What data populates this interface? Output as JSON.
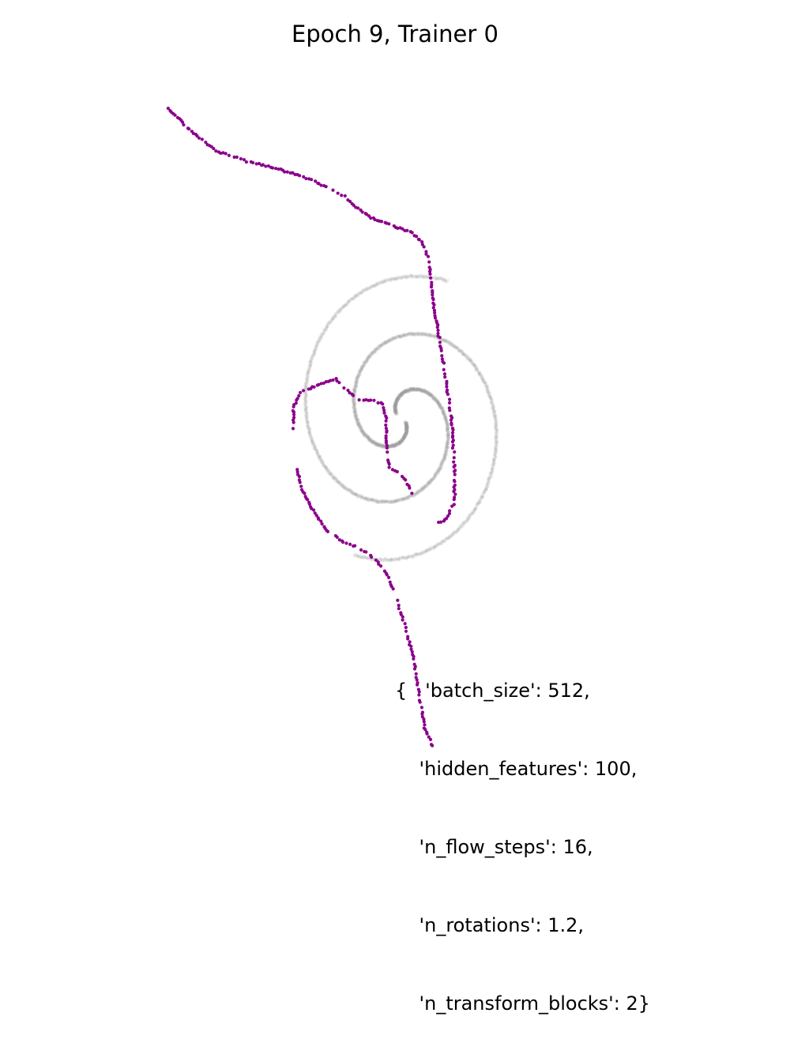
{
  "title": "Epoch 9, Trainer 0",
  "hyperparams": {
    "lines": [
      "{   'batch_size': 512,",
      "    'hidden_features': 100,",
      "    'n_flow_steps': 16,",
      "    'n_rotations': 1.2,",
      "    'n_transform_blocks': 2}"
    ]
  },
  "chart_data": {
    "type": "scatter",
    "title": "Epoch 9, Trainer 0",
    "axes_visible": false,
    "grid": false,
    "xlim": [
      -1.0,
      1.0
    ],
    "ylim": [
      -1.0,
      1.0
    ],
    "series": [
      {
        "role": "target",
        "kind": "spiral-density",
        "color": "#9a9a9a",
        "n_rotations": 1.2,
        "center": [
          0.02,
          -0.02
        ],
        "start_radius": 0.02,
        "end_radius": 0.42,
        "start_angle_deg": -40,
        "arms": [
          {
            "angle_offset_deg": 0
          },
          {
            "angle_offset_deg": 180
          }
        ]
      },
      {
        "role": "samples",
        "kind": "points",
        "color": "#8b008b",
        "path": [
          [
            -0.76,
            0.86
          ],
          [
            -0.69,
            0.8
          ],
          [
            -0.6,
            0.74
          ],
          [
            -0.5,
            0.71
          ],
          [
            -0.4,
            0.69
          ],
          [
            -0.29,
            0.66
          ],
          [
            -0.24,
            0.64
          ],
          [
            -0.17,
            0.61
          ],
          [
            -0.13,
            0.58
          ],
          [
            -0.08,
            0.55
          ],
          [
            -0.02,
            0.53
          ],
          [
            0.05,
            0.51
          ],
          [
            0.09,
            0.48
          ],
          [
            0.11,
            0.44
          ],
          [
            0.12,
            0.38
          ],
          [
            0.13,
            0.3
          ],
          [
            0.15,
            0.2
          ],
          [
            0.17,
            0.09
          ],
          [
            0.19,
            -0.02
          ],
          [
            0.2,
            -0.16
          ],
          [
            0.2,
            -0.26
          ],
          [
            0.17,
            -0.31
          ],
          [
            0.14,
            -0.32
          ],
          null,
          [
            -0.34,
            -0.05
          ],
          [
            -0.34,
            0.01
          ],
          [
            -0.32,
            0.05
          ],
          [
            -0.27,
            0.07
          ],
          [
            -0.2,
            0.09
          ],
          [
            -0.12,
            0.03
          ],
          [
            -0.08,
            0.03
          ],
          [
            -0.04,
            0.02
          ],
          [
            -0.03,
            -0.02
          ],
          [
            -0.03,
            -0.09
          ],
          [
            -0.02,
            -0.16
          ],
          [
            0.0,
            -0.17
          ],
          [
            0.03,
            -0.19
          ],
          [
            0.06,
            -0.24
          ],
          null,
          [
            -0.33,
            -0.16
          ],
          [
            -0.31,
            -0.23
          ],
          [
            -0.27,
            -0.29
          ],
          [
            -0.23,
            -0.34
          ],
          [
            -0.18,
            -0.37
          ],
          [
            -0.12,
            -0.39
          ],
          [
            -0.07,
            -0.42
          ],
          [
            -0.03,
            -0.46
          ],
          [
            0.0,
            -0.52
          ],
          [
            0.03,
            -0.6
          ],
          [
            0.06,
            -0.7
          ],
          [
            0.08,
            -0.8
          ],
          [
            0.1,
            -0.9
          ],
          [
            0.13,
            -0.96
          ]
        ]
      }
    ]
  }
}
